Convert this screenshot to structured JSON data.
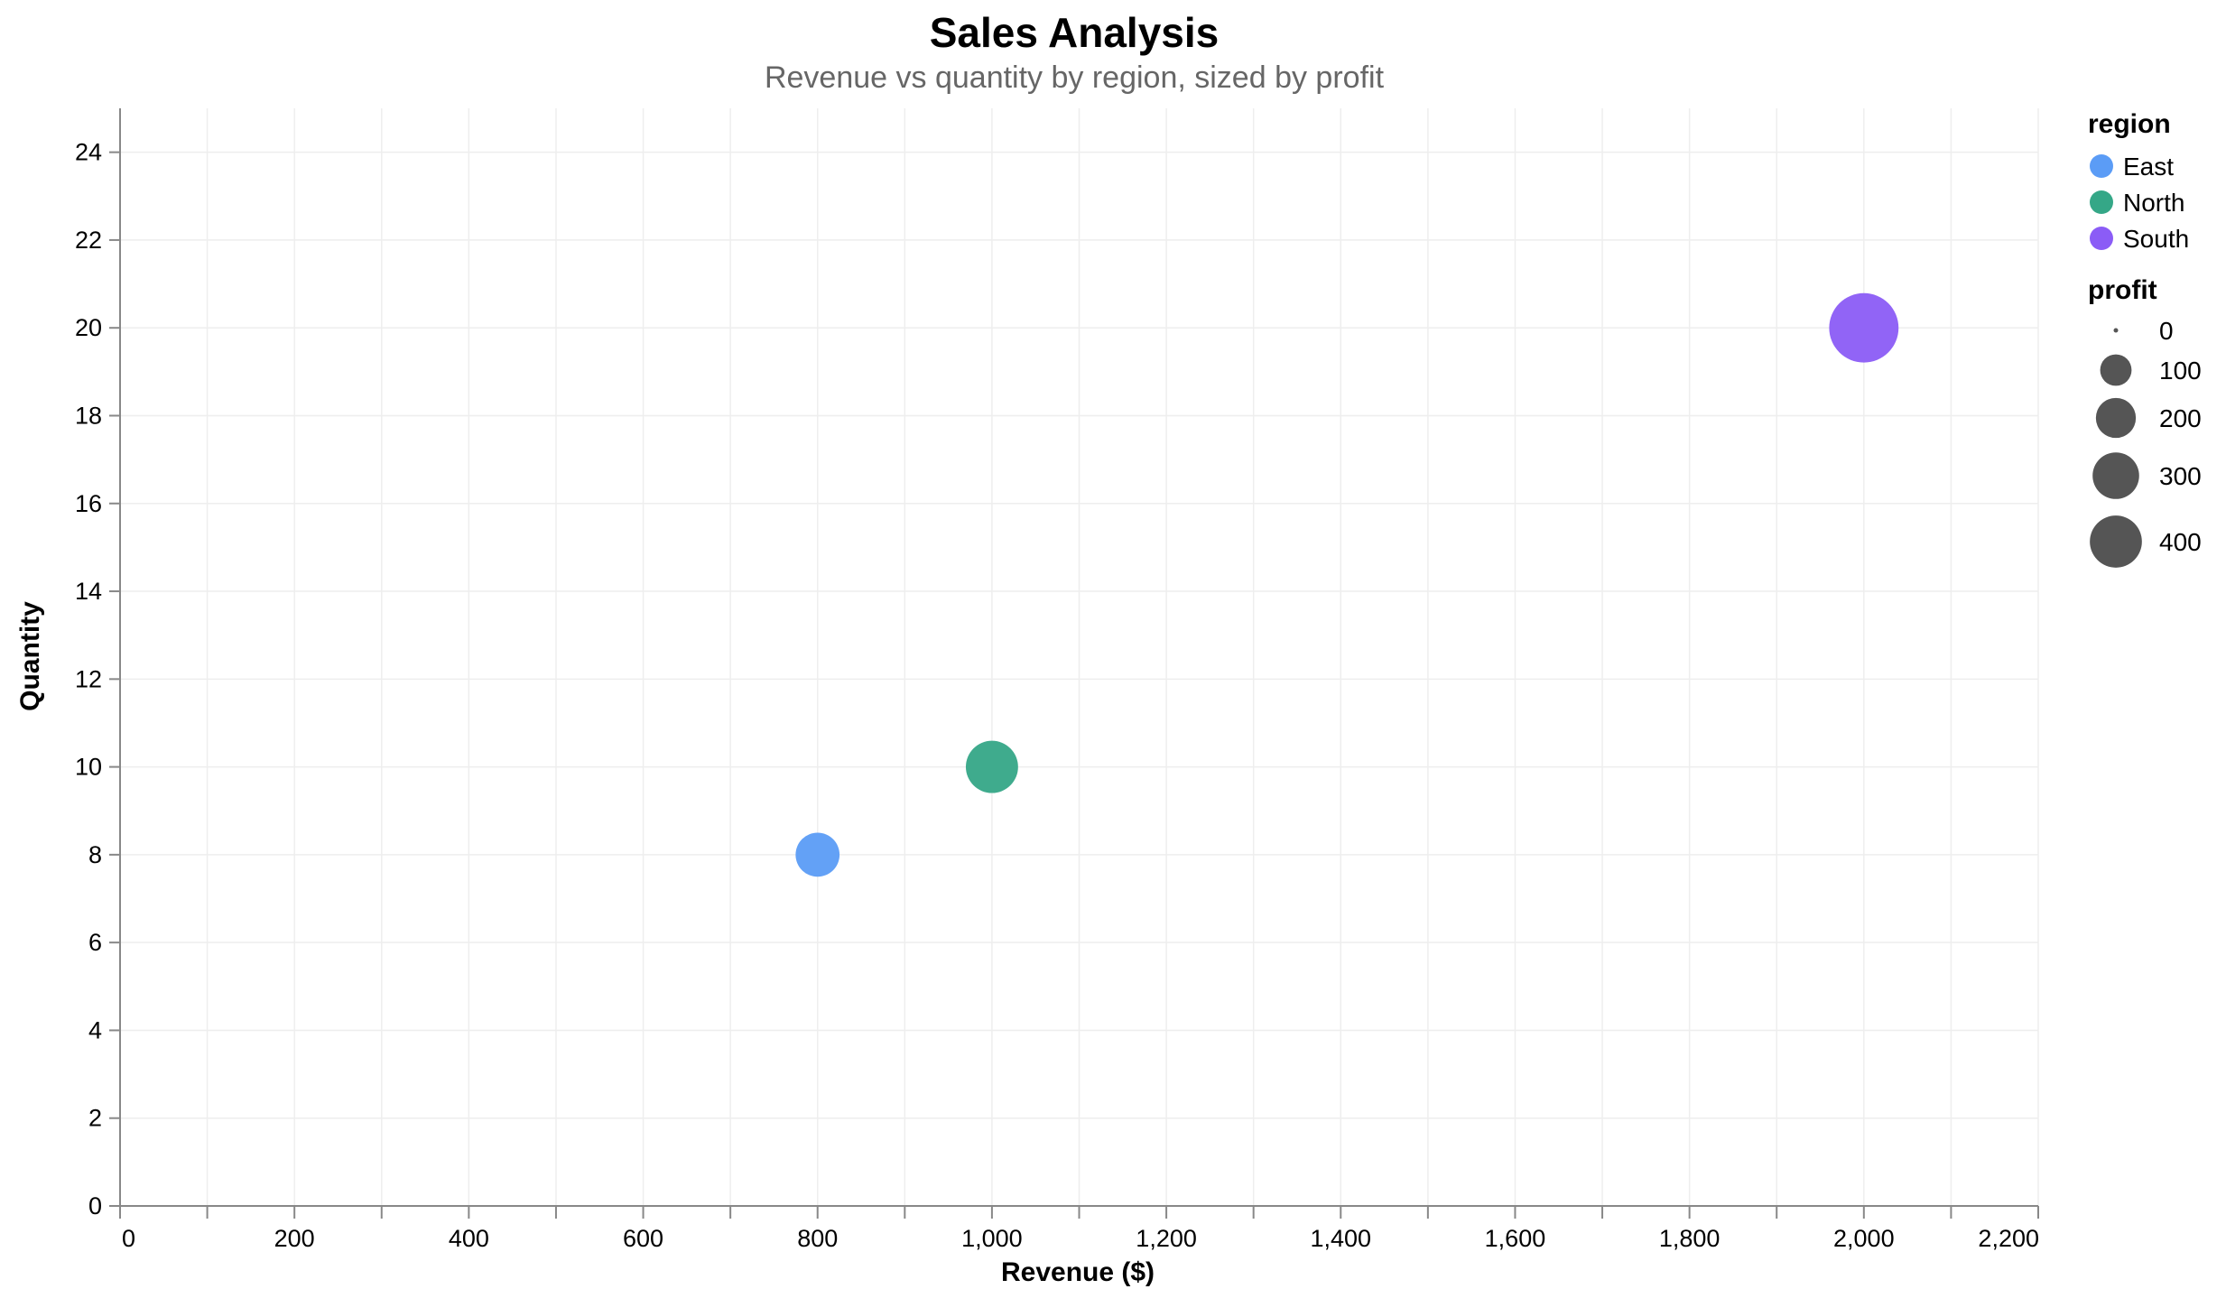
{
  "chart_data": {
    "type": "scatter",
    "title": "Sales Analysis",
    "subtitle": "Revenue vs quantity by region, sized by profit",
    "xlabel": "Revenue ($)",
    "ylabel": "Quantity",
    "xlim": [
      0,
      2200
    ],
    "ylim": [
      0,
      25
    ],
    "x_ticks": [
      0,
      200,
      400,
      600,
      800,
      1000,
      1200,
      1400,
      1600,
      1800,
      2000,
      2200
    ],
    "x_tick_labels": [
      "0",
      "200",
      "400",
      "600",
      "800",
      "1,000",
      "1,200",
      "1,400",
      "1,600",
      "1,800",
      "2,000",
      "2,200"
    ],
    "y_ticks": [
      0,
      2,
      4,
      6,
      8,
      10,
      12,
      14,
      16,
      18,
      20,
      22,
      24
    ],
    "y_tick_labels": [
      "0",
      "2",
      "4",
      "6",
      "8",
      "10",
      "12",
      "14",
      "16",
      "18",
      "20",
      "22",
      "24"
    ],
    "grid": true,
    "legend_position": "right",
    "color_legend": {
      "title": "region",
      "entries": [
        {
          "label": "East",
          "color": "#5b9cf6"
        },
        {
          "label": "North",
          "color": "#35a787"
        },
        {
          "label": "South",
          "color": "#8b5cf6"
        }
      ]
    },
    "size_legend": {
      "title": "profit",
      "entries": [
        {
          "label": "0",
          "value": 0
        },
        {
          "label": "100",
          "value": 100
        },
        {
          "label": "200",
          "value": 200
        },
        {
          "label": "300",
          "value": 300
        },
        {
          "label": "400",
          "value": 400
        }
      ]
    },
    "points": [
      {
        "region": "East",
        "revenue": 800,
        "quantity": 8,
        "profit": 160
      },
      {
        "region": "North",
        "revenue": 1000,
        "quantity": 10,
        "profit": 250
      },
      {
        "region": "South",
        "revenue": 2000,
        "quantity": 20,
        "profit": 500
      }
    ]
  }
}
